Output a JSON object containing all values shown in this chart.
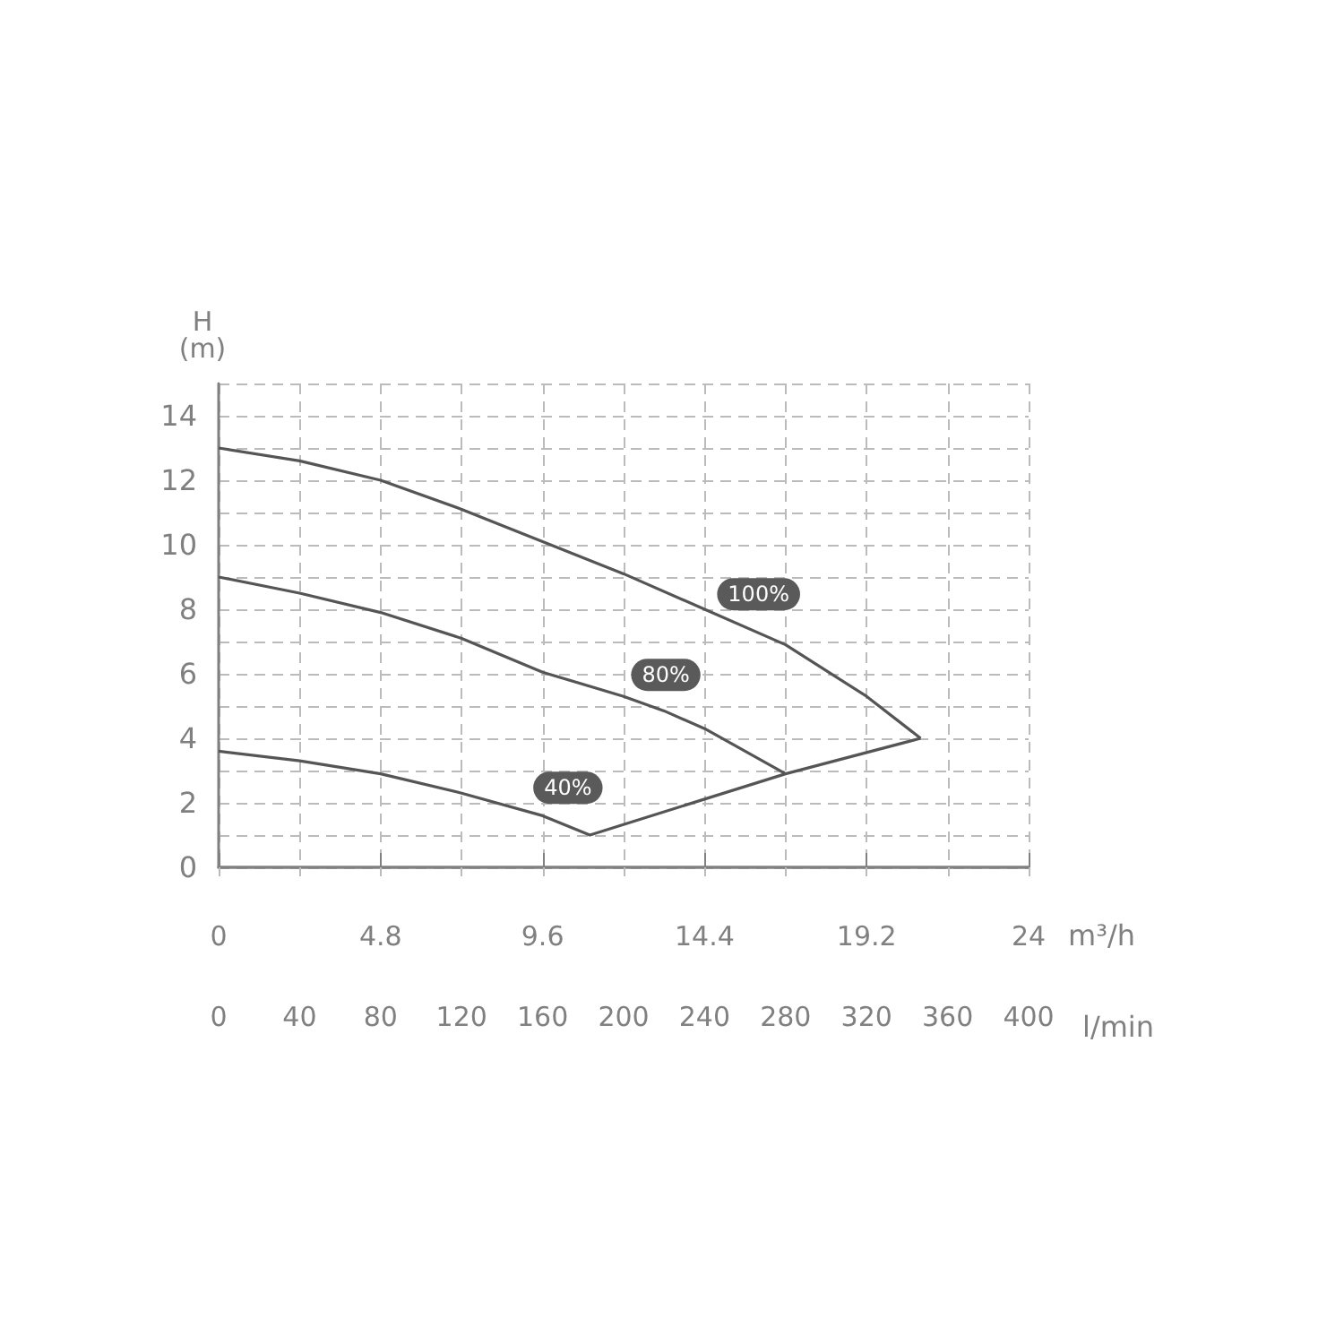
{
  "chart_data": {
    "type": "line",
    "xlabel": "m³/h",
    "x2label": "l/min",
    "ylabel": "H\n(m)",
    "xlim": [
      0,
      24
    ],
    "xticks": [
      0,
      4.8,
      9.6,
      14.4,
      19.2,
      24
    ],
    "x2lim": [
      0,
      400
    ],
    "x2ticks": [
      0,
      40,
      80,
      120,
      160,
      200,
      240,
      280,
      320,
      360,
      400
    ],
    "ylim": [
      0,
      15
    ],
    "yticks": [
      0,
      {
        "value": 1,
        "label": null
      },
      2,
      {
        "value": 3,
        "label": null
      },
      4,
      {
        "value": 5,
        "label": null
      },
      6,
      {
        "value": 7,
        "label": null
      },
      8,
      {
        "value": 9,
        "label": null
      },
      10,
      {
        "value": 11,
        "label": null
      },
      12,
      {
        "value": 13,
        "label": null
      },
      14,
      {
        "value": 15,
        "label": null
      }
    ],
    "grid": true,
    "marker": "none",
    "series": [
      {
        "color": "#555555",
        "x": [
          0,
          2.4,
          4.8,
          7.2,
          9.6,
          12,
          14.4,
          16.8,
          19.2,
          20.8
        ],
        "values": [
          13,
          12.6,
          12,
          11.1,
          10.1,
          9.1,
          8.0,
          6.9,
          5.3,
          4.0
        ]
      },
      {
        "color": "#555555",
        "x": [
          0,
          2.4,
          4.8,
          7.2,
          9.6,
          12,
          13.2,
          14.4,
          16.8
        ],
        "values": [
          9,
          8.5,
          7.9,
          7.1,
          6.05,
          5.3,
          4.85,
          4.3,
          2.9
        ]
      },
      {
        "color": "#555555",
        "x": [
          0,
          2.4,
          4.8,
          7.2,
          9.6,
          11,
          16.8,
          20.8
        ],
        "values": [
          3.6,
          3.3,
          2.9,
          2.3,
          1.6,
          1.0,
          2.9,
          4.0
        ]
      }
    ],
    "annotations": [
      {
        "text": "100%",
        "x": 16.0,
        "y": 7.3
      },
      {
        "text": "80%",
        "x": 13.25,
        "y": 4.8
      },
      {
        "text": "40%",
        "x": 10.35,
        "y": 1.3
      }
    ]
  }
}
